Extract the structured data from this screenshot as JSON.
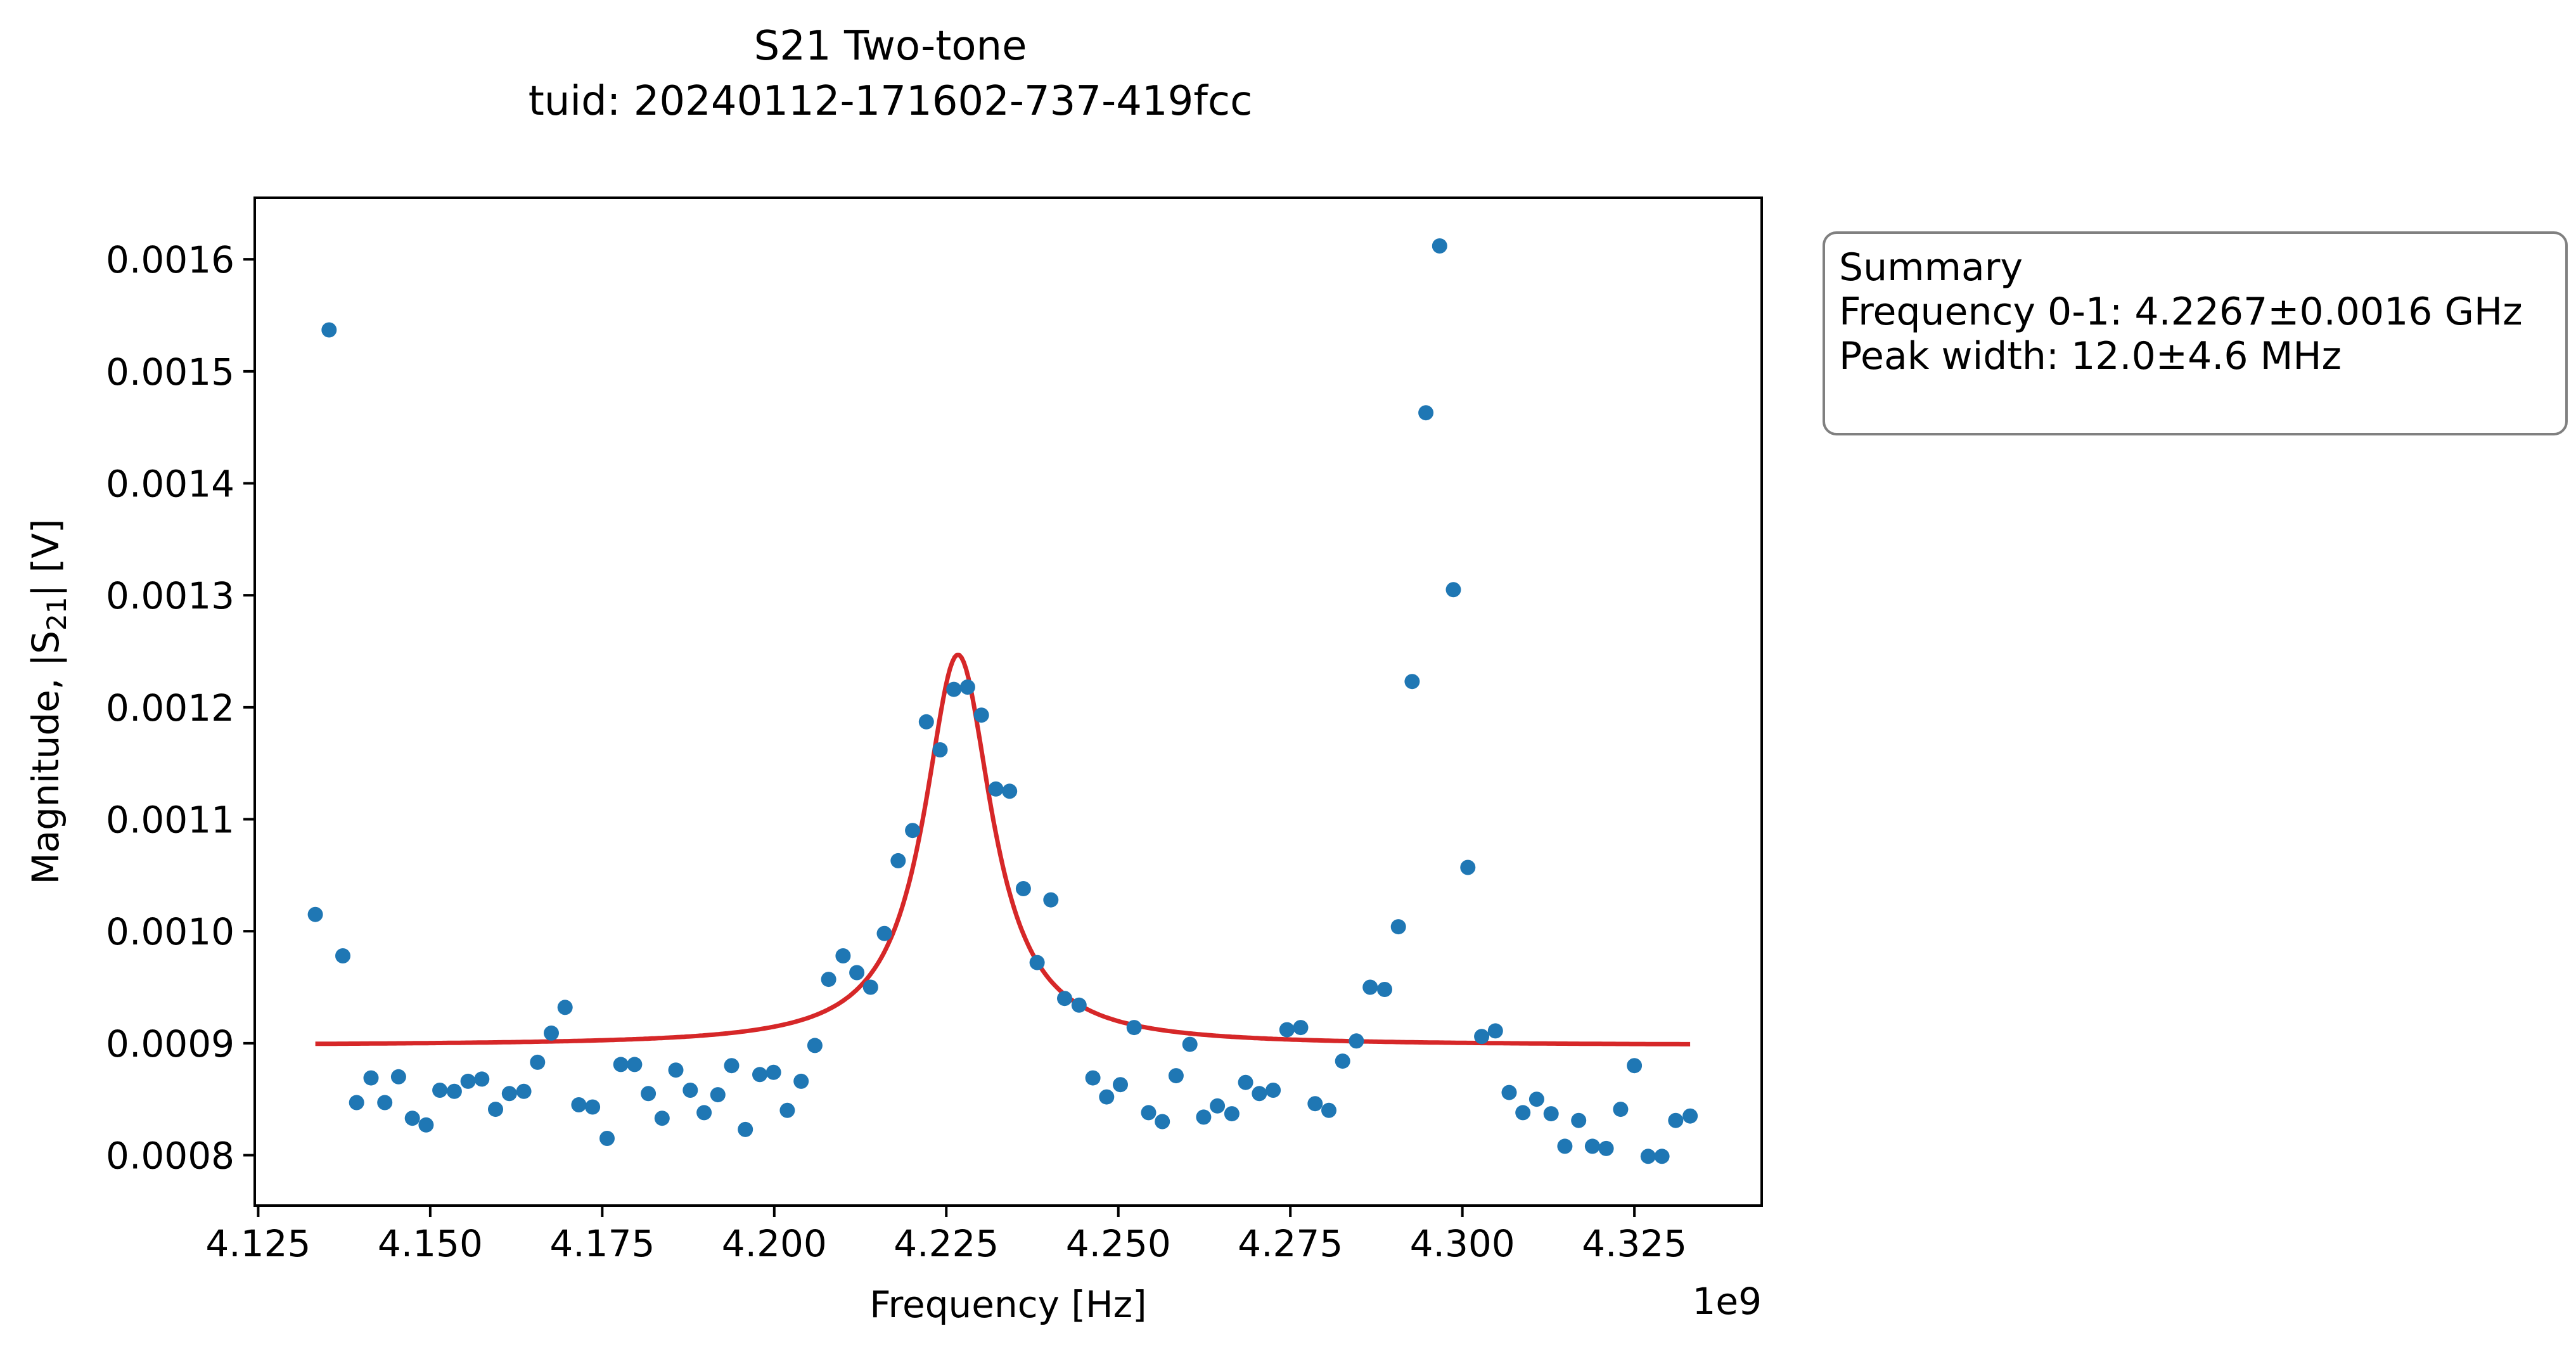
{
  "chart_data": {
    "type": "scatter",
    "title": "S21 Two-tone",
    "subtitle": "tuid: 20240112-171602-737-419fcc",
    "xlabel": "Frequency [Hz]",
    "ylabel_prefix": "Magnitude, |S",
    "ylabel_sub": "21",
    "ylabel_suffix": "| [V]",
    "x_offset_label": "1e9",
    "xlim": [
      4.1245,
      4.3435
    ],
    "ylim": [
      0.000755,
      0.001655
    ],
    "x_scale_factor": 1000000000.0,
    "xticks": [
      4.125,
      4.15,
      4.175,
      4.2,
      4.225,
      4.25,
      4.275,
      4.3,
      4.325
    ],
    "xtick_labels": [
      "4.125",
      "4.150",
      "4.175",
      "4.200",
      "4.225",
      "4.250",
      "4.275",
      "4.300",
      "4.325"
    ],
    "yticks": [
      0.0008,
      0.0009,
      0.001,
      0.0011,
      0.0012,
      0.0013,
      0.0014,
      0.0015,
      0.0016
    ],
    "ytick_labels": [
      "0.0008",
      "0.0009",
      "0.0010",
      "0.0011",
      "0.0012",
      "0.0013",
      "0.0014",
      "0.0015",
      "0.0016"
    ],
    "grid": false,
    "series": [
      {
        "kind": "scatter",
        "color": "#1f77b4",
        "x": [
          4.1333,
          4.1353,
          4.1373,
          4.1393,
          4.1414,
          4.1434,
          4.1454,
          4.1474,
          4.1494,
          4.1514,
          4.1535,
          4.1555,
          4.1575,
          4.1595,
          4.1615,
          4.1636,
          4.1656,
          4.1676,
          4.1696,
          4.1716,
          4.1736,
          4.1757,
          4.1777,
          4.1797,
          4.1817,
          4.1837,
          4.1857,
          4.1878,
          4.1898,
          4.1918,
          4.1938,
          4.1958,
          4.1979,
          4.1999,
          4.2019,
          4.2039,
          4.2059,
          4.2079,
          4.21,
          4.212,
          4.214,
          4.216,
          4.218,
          4.2201,
          4.2221,
          4.2241,
          4.2261,
          4.2281,
          4.2301,
          4.2322,
          4.2342,
          4.2362,
          4.2382,
          4.2402,
          4.2422,
          4.2443,
          4.2463,
          4.2483,
          4.2503,
          4.2523,
          4.2544,
          4.2564,
          4.2584,
          4.2604,
          4.2624,
          4.2644,
          4.2665,
          4.2685,
          4.2705,
          4.2725,
          4.2745,
          4.2765,
          4.2786,
          4.2806,
          4.2826,
          4.2846,
          4.2866,
          4.2887,
          4.2907,
          4.2927,
          4.2947,
          4.2967,
          4.2987,
          4.3008,
          4.3028,
          4.3048,
          4.3068,
          4.3088,
          4.3108,
          4.3129,
          4.3149,
          4.3169,
          4.3189,
          4.3209,
          4.323,
          4.325,
          4.327,
          4.329,
          4.331,
          4.3331
        ],
        "y": [
          0.001015,
          0.001537,
          0.000978,
          0.000847,
          0.000869,
          0.000847,
          0.00087,
          0.000833,
          0.000827,
          0.000858,
          0.000857,
          0.000866,
          0.000868,
          0.000841,
          0.000855,
          0.000857,
          0.000883,
          0.000909,
          0.000932,
          0.000845,
          0.000843,
          0.000815,
          0.000881,
          0.000881,
          0.000855,
          0.000833,
          0.000876,
          0.000858,
          0.000838,
          0.000854,
          0.00088,
          0.000823,
          0.000872,
          0.000874,
          0.00084,
          0.000866,
          0.000898,
          0.000957,
          0.000978,
          0.000963,
          0.00095,
          0.000998,
          0.001063,
          0.00109,
          0.001187,
          0.001162,
          0.001216,
          0.001218,
          0.001193,
          0.001127,
          0.001125,
          0.001038,
          0.000972,
          0.001028,
          0.00094,
          0.000934,
          0.000869,
          0.000852,
          0.000863,
          0.000914,
          0.000838,
          0.00083,
          0.000871,
          0.000899,
          0.000834,
          0.000844,
          0.000837,
          0.000865,
          0.000855,
          0.000858,
          0.000912,
          0.000914,
          0.000846,
          0.00084,
          0.000884,
          0.000902,
          0.00095,
          0.000948,
          0.001004,
          0.001223,
          0.001463,
          0.001612,
          0.001305,
          0.001057,
          0.000906,
          0.000911,
          0.000856,
          0.000838,
          0.00085,
          0.000837,
          0.000808,
          0.000831,
          0.000808,
          0.000806,
          0.000841,
          0.00088,
          0.000799,
          0.000799,
          0.000831,
          0.000835
        ]
      },
      {
        "kind": "lorentzian_fit",
        "color": "#d62728",
        "center": 4.2267,
        "fwhm": 0.012,
        "offset": 0.000898,
        "amplitude": 0.000349,
        "x_range": [
          4.1333,
          4.3331
        ]
      }
    ]
  },
  "summary": {
    "heading": "Summary",
    "frequency": "Frequency 0-1: 4.2267±0.0016 GHz",
    "peak_width": "Peak width: 12.0±4.6 MHz"
  }
}
